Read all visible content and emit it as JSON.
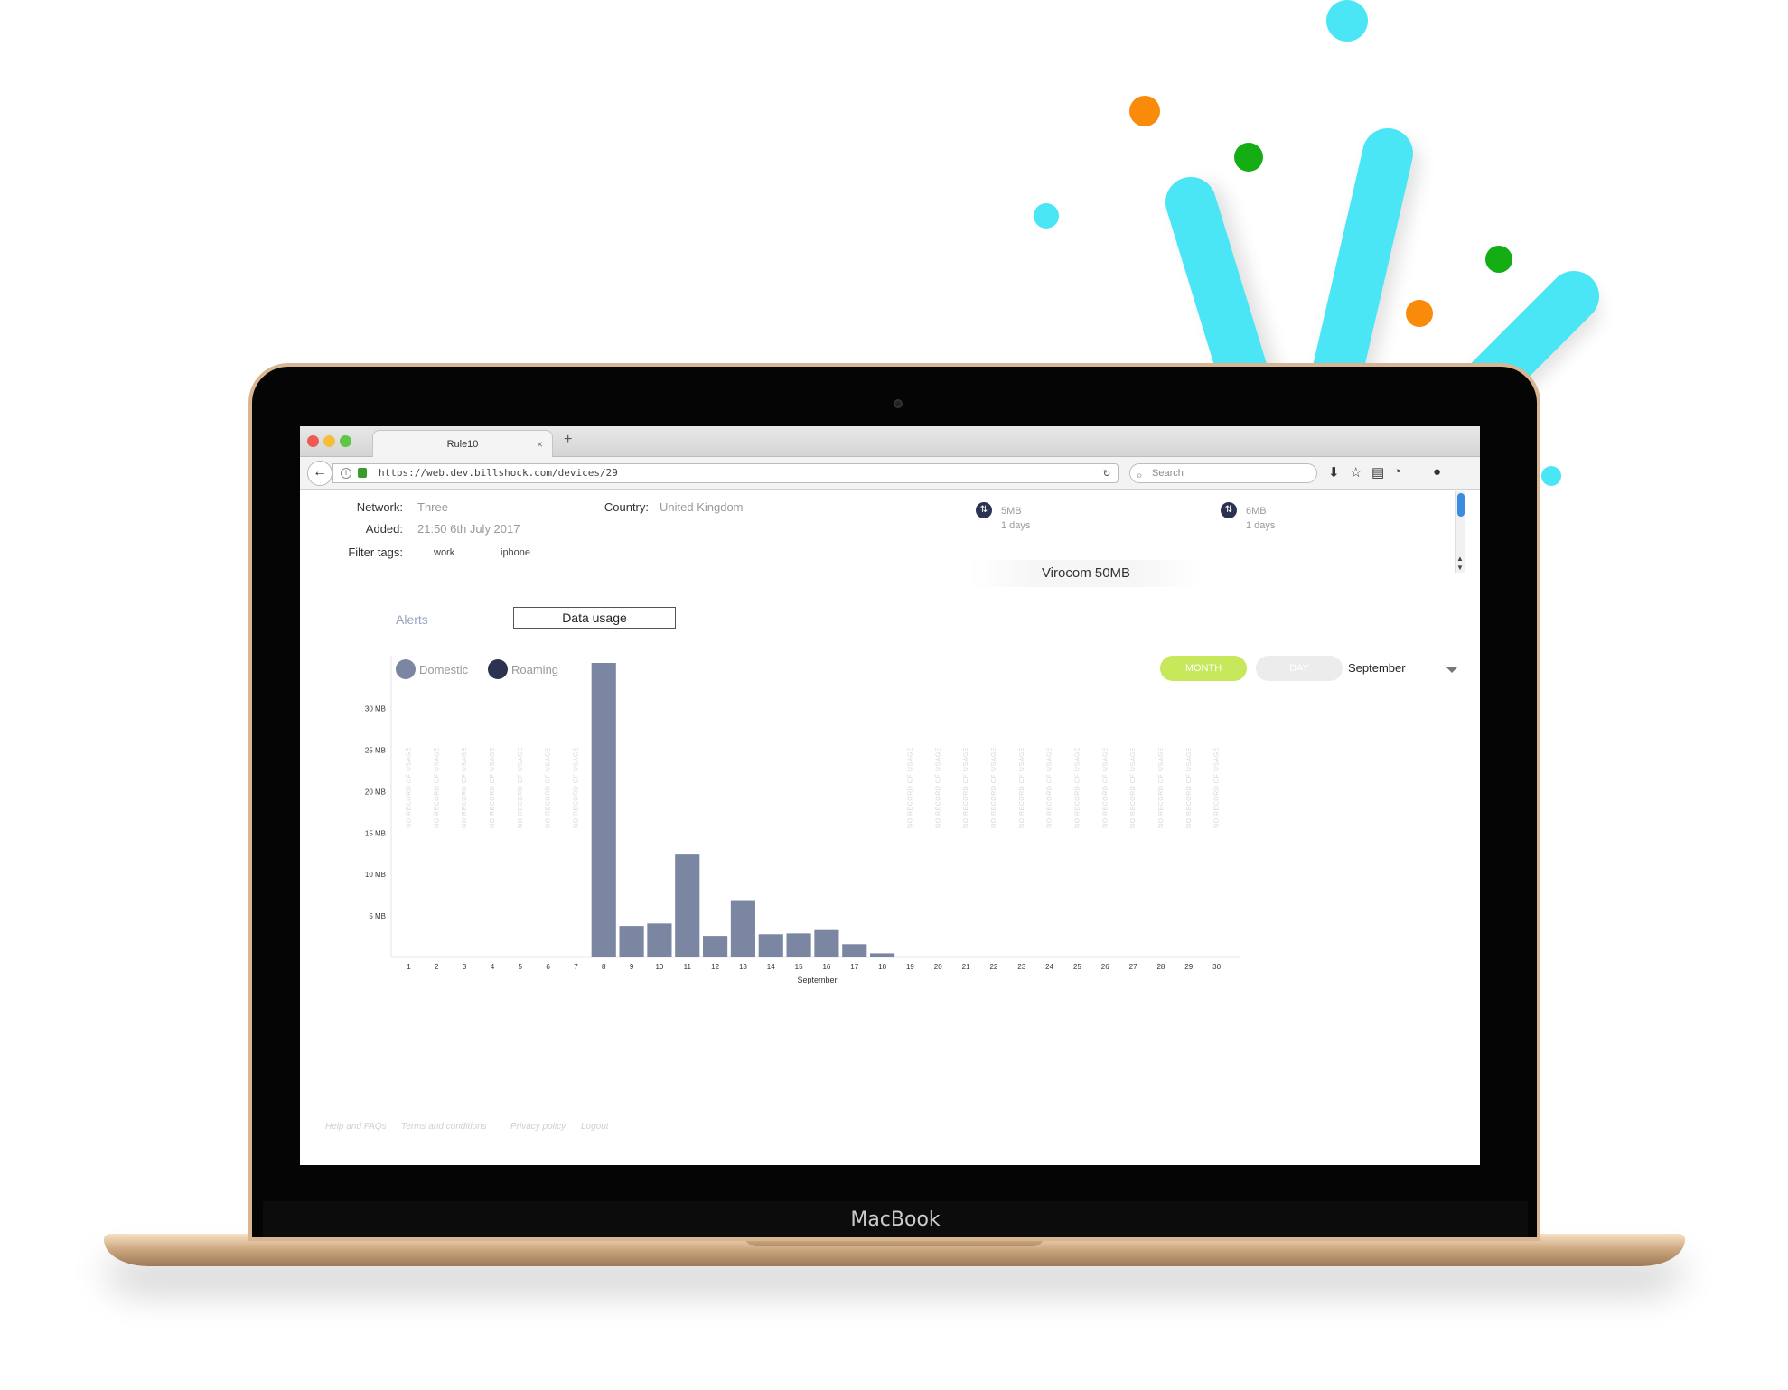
{
  "browser": {
    "tab_title": "Rule10",
    "tab_close": "×",
    "new_tab": "+",
    "url": "https://web.dev.billshock.com/devices/29",
    "search_placeholder": "Search"
  },
  "device": {
    "network_label": "Network:",
    "network_value": "Three",
    "added_label": "Added:",
    "added_value": "21:50 6th July 2017",
    "filter_label": "Filter tags:",
    "tags": [
      "work",
      "iphone"
    ],
    "country_label": "Country:",
    "country_value": "United Kingdom"
  },
  "plans": [
    {
      "size": "5MB",
      "days": "1 days"
    },
    {
      "size": "6MB",
      "days": "1 days"
    }
  ],
  "plan_name": "Virocom 50MB",
  "tabs": {
    "alerts": "Alerts",
    "data_usage": "Data usage"
  },
  "legend": {
    "domestic": "Domestic",
    "roaming": "Roaming",
    "domestic_color": "#7b86a3",
    "roaming_color": "#2c3350"
  },
  "controls": {
    "month": "MONTH",
    "day": "DAY",
    "month_color": "#c6e85a",
    "day_color": "#ececec",
    "selected_month": "September"
  },
  "chart_data": {
    "type": "bar",
    "categories": [
      "1",
      "2",
      "3",
      "4",
      "5",
      "6",
      "7",
      "8",
      "9",
      "10",
      "11",
      "12",
      "13",
      "14",
      "15",
      "16",
      "17",
      "18",
      "19",
      "20",
      "21",
      "22",
      "23",
      "24",
      "25",
      "26",
      "27",
      "28",
      "29",
      "30"
    ],
    "values": [
      0,
      0,
      0,
      0,
      0,
      0,
      0,
      35.5,
      3.8,
      4.1,
      12.4,
      2.6,
      6.8,
      2.8,
      2.9,
      3.3,
      1.6,
      0.5,
      0,
      0,
      0,
      0,
      0,
      0,
      0,
      0,
      0,
      0,
      0,
      0
    ],
    "no_record_days": [
      1,
      2,
      3,
      4,
      5,
      6,
      7,
      19,
      20,
      21,
      22,
      23,
      24,
      25,
      26,
      27,
      28,
      29,
      30
    ],
    "no_record_text": "NO RECORD OF USAGE",
    "xlabel": "September",
    "yticks": [
      "5 MB",
      "10 MB",
      "15 MB",
      "20 MB",
      "25 MB",
      "30 MB"
    ],
    "ylim": [
      0,
      35.5
    ],
    "unit": "MB",
    "color": "#7b86a3"
  },
  "footer": {
    "links": [
      "Help and FAQs",
      "Terms and conditions",
      "Privacy policy",
      "Logout"
    ]
  },
  "laptop": {
    "brand": "MacBook"
  }
}
